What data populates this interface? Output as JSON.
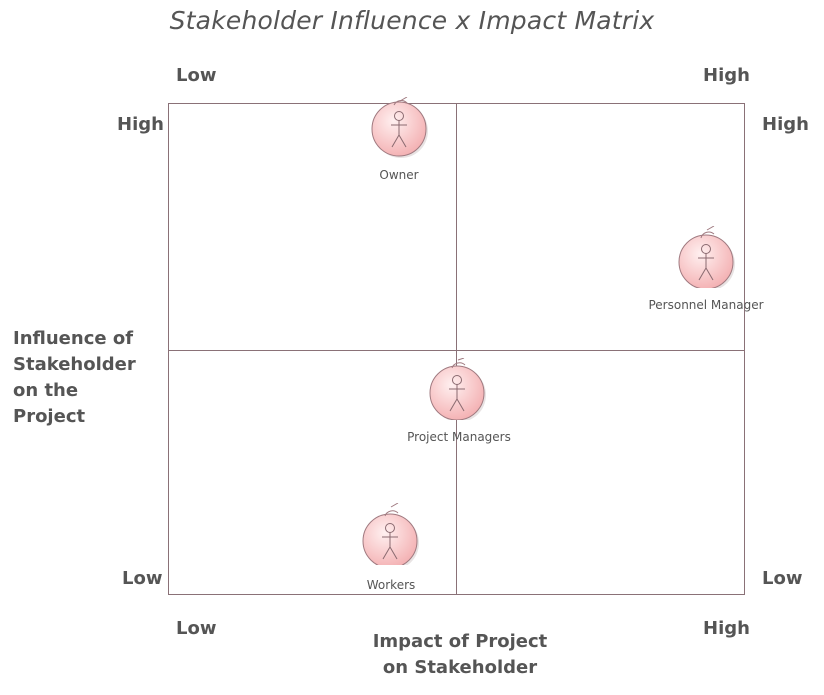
{
  "title": "Stakeholder Influence x Impact Matrix",
  "top_axis": {
    "low": "Low",
    "high": "High"
  },
  "bottom_axis": {
    "low": "Low",
    "high": "High"
  },
  "left_axis": {
    "high": "High",
    "low": "Low"
  },
  "right_axis": {
    "high": "High",
    "low": "Low"
  },
  "y_axis_label": [
    "Influence of",
    "Stakeholder",
    "on the",
    "Project"
  ],
  "x_axis_label": [
    "Impact of Project",
    "on Stakeholder"
  ],
  "stakeholders": [
    {
      "name": "Owner",
      "icon": "actor-icon"
    },
    {
      "name": "Personnel Manager",
      "icon": "actor-icon"
    },
    {
      "name": "Project Managers",
      "icon": "actor-icon"
    },
    {
      "name": "Workers",
      "icon": "actor-icon"
    }
  ],
  "colors": {
    "actor_fill": "#f9c6c6",
    "actor_stroke": "#a07a80",
    "grid": "#8a7177",
    "text": "#555555"
  }
}
